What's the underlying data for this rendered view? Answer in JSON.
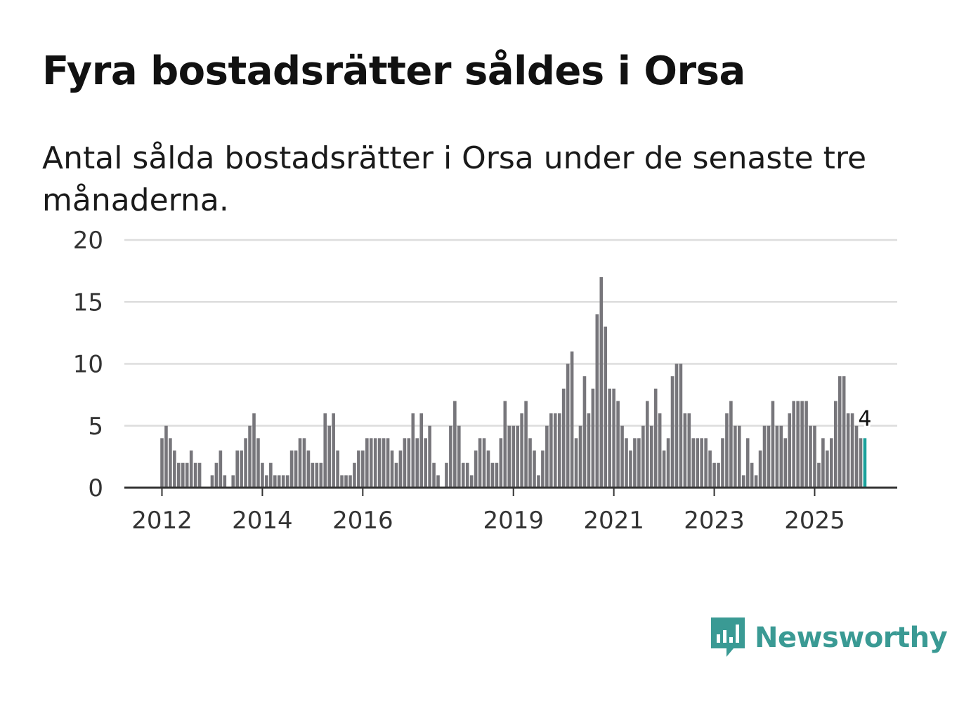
{
  "header": {
    "title": "Fyra bostadsrätter såldes i Orsa",
    "subtitle": "Antal sålda bostadsrätter i Orsa under de senaste tre månaderna."
  },
  "brand": {
    "name": "Newsworthy",
    "icon": "newsworthy-logo-icon"
  },
  "colors": {
    "bar": "#77767b",
    "highlight": "#1aa19b",
    "grid": "#dddddd",
    "axis": "#333333",
    "brand": "#3a9a94"
  },
  "chart_data": {
    "type": "bar",
    "title": "Fyra bostadsrätter såldes i Orsa",
    "xlabel": "",
    "ylabel": "",
    "ylim": [
      0,
      20
    ],
    "yticks": [
      0,
      5,
      10,
      15,
      20
    ],
    "start": "2012-01",
    "xtick_labels": [
      {
        "label": "2012",
        "index": 0
      },
      {
        "label": "2014",
        "index": 24
      },
      {
        "label": "2016",
        "index": 48
      },
      {
        "label": "2019",
        "index": 84
      },
      {
        "label": "2021",
        "index": 108
      },
      {
        "label": "2023",
        "index": 132
      },
      {
        "label": "2025",
        "index": 156
      }
    ],
    "highlight_label": "4",
    "series": [
      {
        "name": "Antal sålda bostadsrätter",
        "values": [
          4,
          5,
          4,
          3,
          2,
          2,
          2,
          3,
          2,
          2,
          0,
          0,
          1,
          2,
          3,
          1,
          0,
          1,
          3,
          3,
          4,
          5,
          6,
          4,
          2,
          1,
          2,
          1,
          1,
          1,
          1,
          3,
          3,
          4,
          4,
          3,
          2,
          2,
          2,
          6,
          5,
          6,
          3,
          1,
          1,
          1,
          2,
          3,
          3,
          4,
          4,
          4,
          4,
          4,
          4,
          3,
          2,
          3,
          4,
          4,
          6,
          4,
          6,
          4,
          5,
          2,
          1,
          0,
          2,
          5,
          7,
          5,
          2,
          2,
          1,
          3,
          4,
          4,
          3,
          2,
          2,
          4,
          7,
          5,
          5,
          5,
          6,
          7,
          4,
          3,
          1,
          3,
          5,
          6,
          6,
          6,
          8,
          10,
          11,
          4,
          5,
          9,
          6,
          8,
          14,
          17,
          13,
          8,
          8,
          7,
          5,
          4,
          3,
          4,
          4,
          5,
          7,
          5,
          8,
          6,
          3,
          4,
          9,
          10,
          10,
          6,
          6,
          4,
          4,
          4,
          4,
          3,
          2,
          2,
          4,
          6,
          7,
          5,
          5,
          1,
          4,
          2,
          1,
          3,
          5,
          5,
          7,
          5,
          5,
          4,
          6,
          7,
          7,
          7,
          7,
          5,
          5,
          2,
          4,
          3,
          4,
          7,
          9,
          9,
          6,
          6,
          5,
          4,
          4
        ]
      }
    ]
  }
}
